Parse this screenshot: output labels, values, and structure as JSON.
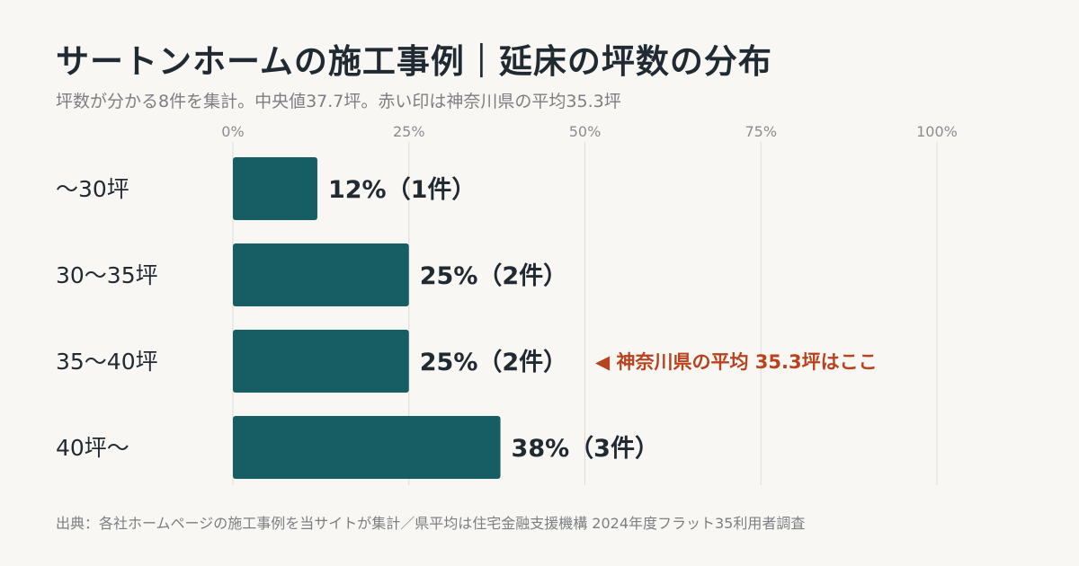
{
  "header": {
    "title": "サートンホームの施工事例｜延床の坪数の分布",
    "subtitle": "坪数が分かる8件を集計。中央値37.7坪。赤い印は神奈川県の平均35.3坪"
  },
  "footer": {
    "source": "出典：各社ホームページの施工事例を当サイトが集計／県平均は住宅金融支援機構 2024年度フラット35利用者調査"
  },
  "colors": {
    "bar": "#165e63",
    "grid": "#dcdcd8",
    "marker": "#b8431f",
    "background": "#f8f7f3"
  },
  "chart_data": {
    "type": "bar",
    "orientation": "horizontal",
    "categories": [
      "〜30坪",
      "30〜35坪",
      "35〜40坪",
      "40坪〜"
    ],
    "values": [
      12,
      25,
      25,
      38
    ],
    "counts": [
      1,
      2,
      2,
      3
    ],
    "value_labels": [
      "12%（1件）",
      "25%（2件）",
      "25%（2件）",
      "38%（3件）"
    ],
    "xlim": [
      0,
      100
    ],
    "xticks": [
      0,
      25,
      50,
      75,
      100
    ],
    "xtick_labels": [
      "0%",
      "25%",
      "50%",
      "75%",
      "100%"
    ],
    "grid": true,
    "annotation": {
      "category": "35〜40坪",
      "text": "◀ 神奈川県の平均 35.3坪はここ"
    }
  }
}
